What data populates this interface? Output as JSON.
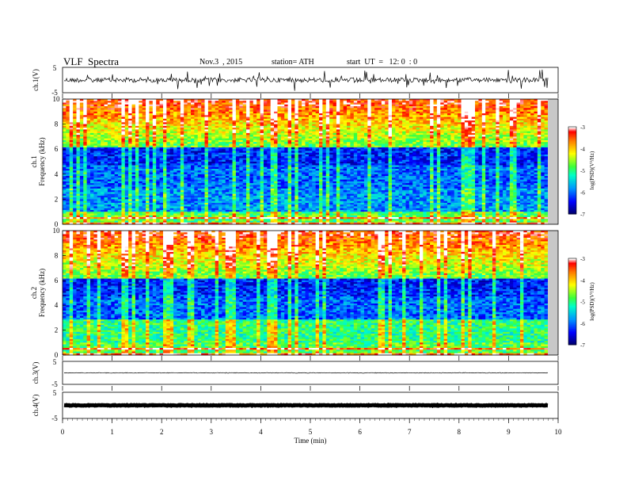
{
  "header": {
    "title": "VLF  Spectra",
    "date": "Nov.3  , 2015",
    "station": "station= ATH",
    "start": "start  UT  =   12: 0  : 0"
  },
  "chart_data": [
    {
      "type": "line",
      "panel": "ch1-waveform",
      "ylabel": "ch.1(V)",
      "ylim": [
        -5,
        5
      ],
      "yticks": [
        "5",
        "-5"
      ],
      "xlim": [
        0,
        10
      ],
      "description_values": "noisy waveform centered near 0 V with spikes to about ±3 V",
      "baseline": 0,
      "spike_amplitude": 3
    },
    {
      "type": "heatmap",
      "panel": "ch1-spectrogram",
      "ylabel_top": "ch.1",
      "ylabel": "Frequency  (kHz)",
      "ylim": [
        0,
        10
      ],
      "yticks": [
        "0",
        "2",
        "4",
        "6",
        "8",
        "10"
      ],
      "xlim": [
        0,
        9.8
      ],
      "colorbar": {
        "label": "log(PSD)(V²/Hz)",
        "range": [
          -7,
          -3
        ],
        "ticks": [
          "-3",
          "-4",
          "-5",
          "-6",
          "-7"
        ],
        "colors": [
          "#000066",
          "#0000ff",
          "#00a0ff",
          "#00ff80",
          "#ffff00",
          "#ff8000",
          "#ff0000",
          "#ffffff"
        ]
      }
    },
    {
      "type": "heatmap",
      "panel": "ch2-spectrogram",
      "ylabel_top": "ch.2",
      "ylabel": "Frequency  (kHz)",
      "ylim": [
        0,
        10
      ],
      "yticks": [
        "0",
        "2",
        "4",
        "6",
        "8",
        "10"
      ],
      "xlim": [
        0,
        9.8
      ],
      "colorbar": {
        "label": "log(PSD)(V²/Hz)",
        "range": [
          -7,
          -3
        ],
        "ticks": [
          "-3",
          "-4",
          "-5",
          "-6",
          "-7"
        ]
      }
    },
    {
      "type": "line",
      "panel": "ch3-waveform",
      "ylabel": "ch.3(V)",
      "ylim": [
        -5,
        5
      ],
      "yticks": [
        "5",
        "-5"
      ],
      "baseline": 0
    },
    {
      "type": "line",
      "panel": "ch4-waveform",
      "ylabel": "ch.4(V)",
      "ylim": [
        -5,
        5
      ],
      "yticks": [
        "5",
        "-5"
      ],
      "baseline": 0,
      "thick": true
    }
  ],
  "xaxis": {
    "label": "Time  (min)",
    "ticks": [
      "0",
      "1",
      "2",
      "3",
      "4",
      "5",
      "6",
      "7",
      "8",
      "9",
      "10"
    ],
    "range": [
      0,
      10
    ]
  }
}
